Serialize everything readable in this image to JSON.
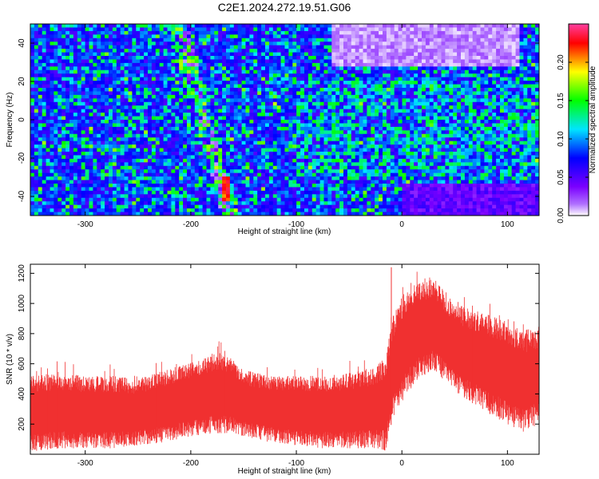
{
  "figure": {
    "title": "C2E1.2024.272.19.51.G06"
  },
  "chart_data": [
    {
      "type": "heatmap",
      "xlabel": "Height of straight line (km)",
      "ylabel": "Frequency (Hz)",
      "xlim": [
        -352,
        130
      ],
      "ylim": [
        -50,
        50
      ],
      "x_ticks": [
        -300,
        -200,
        -100,
        0,
        100
      ],
      "y_ticks": [
        -40,
        -20,
        0,
        20,
        40
      ],
      "grid": false,
      "colorbar": {
        "label": "Normalized spectral amplitude",
        "range": [
          0,
          0.25
        ],
        "ticks": [
          0.0,
          0.05,
          0.1,
          0.15,
          0.2
        ],
        "tick_labels": [
          "0.00",
          "0.05",
          "0.10",
          "0.15",
          "0.20"
        ],
        "colormap": [
          "#ffffff",
          "#7b00ff",
          "#0000ff",
          "#00e5ff",
          "#00ff00",
          "#ffff00",
          "#ff0000",
          "#ff3fa0"
        ]
      },
      "features": [
        {
          "x_range": [
            -230,
            -150
          ],
          "y_range": [
            -50,
            50
          ],
          "description_value": 0.12
        },
        {
          "x_range": [
            -100,
            130
          ],
          "y_range": [
            -30,
            20
          ],
          "description_value": 0.1
        },
        {
          "x_range": [
            -60,
            110
          ],
          "y_range": [
            30,
            48
          ],
          "description_value": 0.0
        }
      ]
    },
    {
      "type": "area",
      "xlabel": "Height of straight line (km)",
      "ylabel": "SNR (10 * v/v)",
      "xlim": [
        -352,
        130
      ],
      "ylim": [
        0,
        1260
      ],
      "x_ticks": [
        -300,
        -200,
        -100,
        0,
        100
      ],
      "y_ticks": [
        200,
        400,
        600,
        800,
        1000,
        1200
      ],
      "grid": false,
      "series": [
        {
          "color": "#f03030",
          "x": [
            -350,
            -325,
            -300,
            -275,
            -250,
            -225,
            -200,
            -175,
            -160,
            -150,
            -125,
            -100,
            -75,
            -50,
            -25,
            -15,
            -10,
            0,
            15,
            30,
            50,
            75,
            100,
            115,
            130
          ],
          "upper": [
            520,
            540,
            520,
            520,
            500,
            560,
            620,
            680,
            640,
            560,
            520,
            520,
            520,
            540,
            580,
            650,
            900,
            1050,
            1150,
            1180,
            1000,
            950,
            880,
            820,
            850
          ],
          "lower": [
            20,
            40,
            40,
            40,
            60,
            80,
            120,
            140,
            140,
            120,
            80,
            60,
            40,
            40,
            40,
            20,
            200,
            350,
            500,
            560,
            420,
            300,
            200,
            150,
            200
          ]
        }
      ]
    }
  ]
}
